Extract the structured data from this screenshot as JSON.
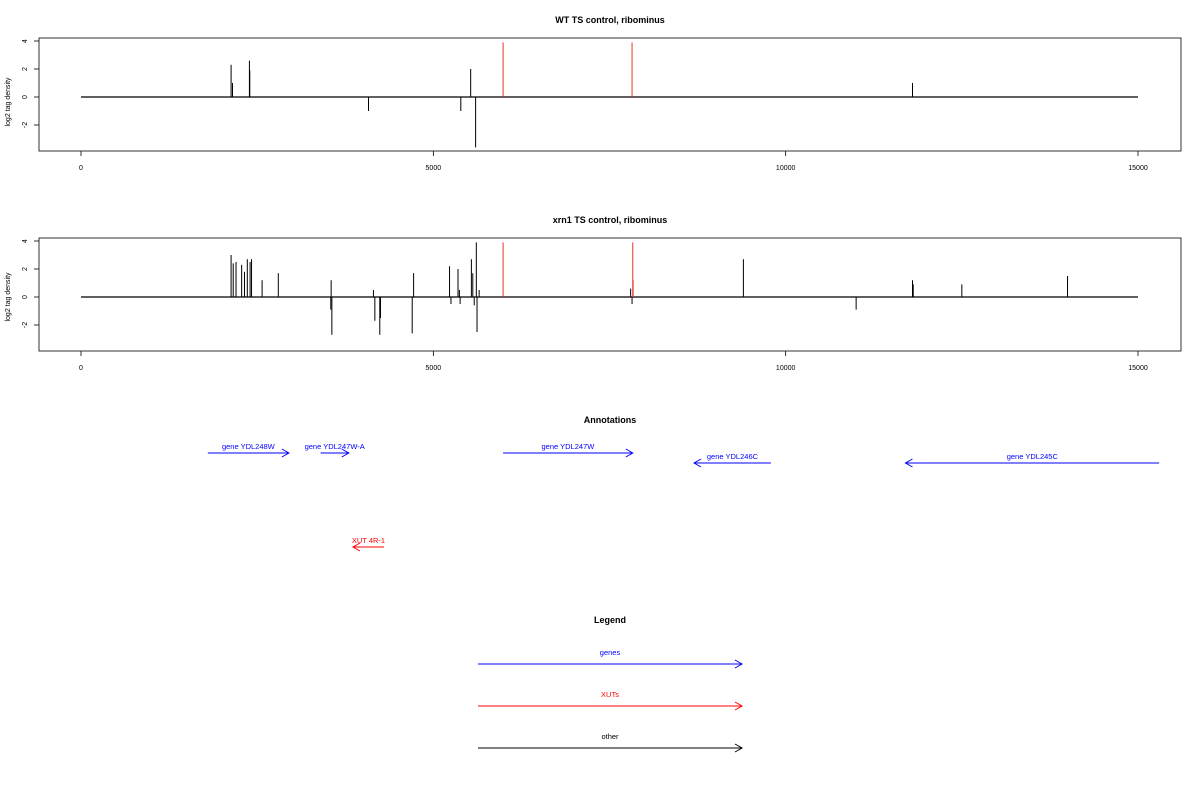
{
  "chart_data": [
    {
      "type": "bar",
      "title": "WT TS control, ribominus",
      "xlabel": "",
      "ylabel": "log2 tag density",
      "xlim": [
        0,
        15000
      ],
      "ylim": [
        -3.8,
        4.2
      ],
      "x_ticks": [
        "0",
        "5000",
        "10000",
        "15000"
      ],
      "y_ticks": [
        "-2",
        "0",
        "2",
        "4"
      ],
      "baseline": 0,
      "series": [
        {
          "color": "#000000",
          "points": [
            {
              "x": 2130,
              "y": 2.3
            },
            {
              "x": 2150,
              "y": 1.0
            },
            {
              "x": 2390,
              "y": 2.6
            },
            {
              "x": 2395,
              "y": 1.9
            },
            {
              "x": 4080,
              "y": -1.0
            },
            {
              "x": 5390,
              "y": -1.0
            },
            {
              "x": 5530,
              "y": 2.0
            },
            {
              "x": 5600,
              "y": -3.6
            },
            {
              "x": 11800,
              "y": 1.0
            }
          ]
        },
        {
          "color": "#e8352a",
          "points": [
            {
              "x": 5990,
              "y": 3.9
            },
            {
              "x": 7820,
              "y": 3.9
            }
          ]
        }
      ]
    },
    {
      "type": "bar",
      "title": "xrn1 TS control, ribominus",
      "xlabel": "",
      "ylabel": "log2 tag density",
      "xlim": [
        0,
        15000
      ],
      "ylim": [
        -3.8,
        4.2
      ],
      "x_ticks": [
        "0",
        "5000",
        "10000",
        "15000"
      ],
      "y_ticks": [
        "-2",
        "0",
        "2",
        "4"
      ],
      "baseline": 0,
      "series": [
        {
          "color": "#000000",
          "points": [
            {
              "x": 2130,
              "y": 3.0
            },
            {
              "x": 2160,
              "y": 2.4
            },
            {
              "x": 2200,
              "y": 2.5
            },
            {
              "x": 2280,
              "y": 2.3
            },
            {
              "x": 2320,
              "y": 1.8
            },
            {
              "x": 2360,
              "y": 2.7
            },
            {
              "x": 2400,
              "y": 2.5
            },
            {
              "x": 2420,
              "y": 2.7
            },
            {
              "x": 2570,
              "y": 1.2
            },
            {
              "x": 2800,
              "y": 1.7
            },
            {
              "x": 3550,
              "y": 1.2
            },
            {
              "x": 3560,
              "y": -2.7
            },
            {
              "x": 3545,
              "y": -0.9
            },
            {
              "x": 4150,
              "y": 0.5
            },
            {
              "x": 4170,
              "y": -1.7
            },
            {
              "x": 4240,
              "y": -2.7
            },
            {
              "x": 4250,
              "y": -1.5
            },
            {
              "x": 4720,
              "y": 1.7
            },
            {
              "x": 4700,
              "y": -2.6
            },
            {
              "x": 5230,
              "y": 2.2
            },
            {
              "x": 5250,
              "y": -0.5
            },
            {
              "x": 5350,
              "y": 2.0
            },
            {
              "x": 5370,
              "y": 0.5
            },
            {
              "x": 5380,
              "y": -0.5
            },
            {
              "x": 5540,
              "y": 2.7
            },
            {
              "x": 5560,
              "y": 1.7
            },
            {
              "x": 5580,
              "y": -0.6
            },
            {
              "x": 5610,
              "y": 3.9
            },
            {
              "x": 5620,
              "y": -2.5
            },
            {
              "x": 5650,
              "y": 0.5
            },
            {
              "x": 7800,
              "y": 0.6
            },
            {
              "x": 7820,
              "y": -0.5
            },
            {
              "x": 9400,
              "y": 2.7
            },
            {
              "x": 11000,
              "y": -0.9
            },
            {
              "x": 11800,
              "y": 1.2
            },
            {
              "x": 11810,
              "y": 0.9
            },
            {
              "x": 12500,
              "y": 0.9
            },
            {
              "x": 14000,
              "y": 1.5
            }
          ]
        },
        {
          "color": "#e8352a",
          "points": [
            {
              "x": 5990,
              "y": 3.9
            },
            {
              "x": 7830,
              "y": 3.9
            },
            {
              "x": 7835,
              "y": 1.2
            }
          ]
        }
      ]
    }
  ],
  "annotations": {
    "title": "Annotations",
    "items": [
      {
        "label": "gene YDL248W",
        "start": 1800,
        "end": 2950,
        "strand": "+",
        "row": 0,
        "color": "#0000ff"
      },
      {
        "label": "gene YDL247W-A",
        "start": 3400,
        "end": 3800,
        "strand": "+",
        "row": 0,
        "color": "#0000ff"
      },
      {
        "label": "gene YDL247W",
        "start": 5990,
        "end": 7830,
        "strand": "+",
        "row": 0,
        "color": "#0000ff"
      },
      {
        "label": "gene YDL246C",
        "start": 8700,
        "end": 9790,
        "strand": "-",
        "row": 1,
        "color": "#0000ff"
      },
      {
        "label": "gene YDL245C",
        "start": 11700,
        "end": 15300,
        "strand": "-",
        "row": 1,
        "color": "#0000ff"
      },
      {
        "label": "XUT 4R-1",
        "start": 3860,
        "end": 4300,
        "strand": "-",
        "row": 2,
        "color": "#ff0000"
      }
    ]
  },
  "legend": {
    "title": "Legend",
    "items": [
      {
        "label": "genes",
        "color": "#0000ff"
      },
      {
        "label": "XUTs",
        "color": "#ff0000"
      },
      {
        "label": "other",
        "color": "#000000"
      }
    ]
  }
}
